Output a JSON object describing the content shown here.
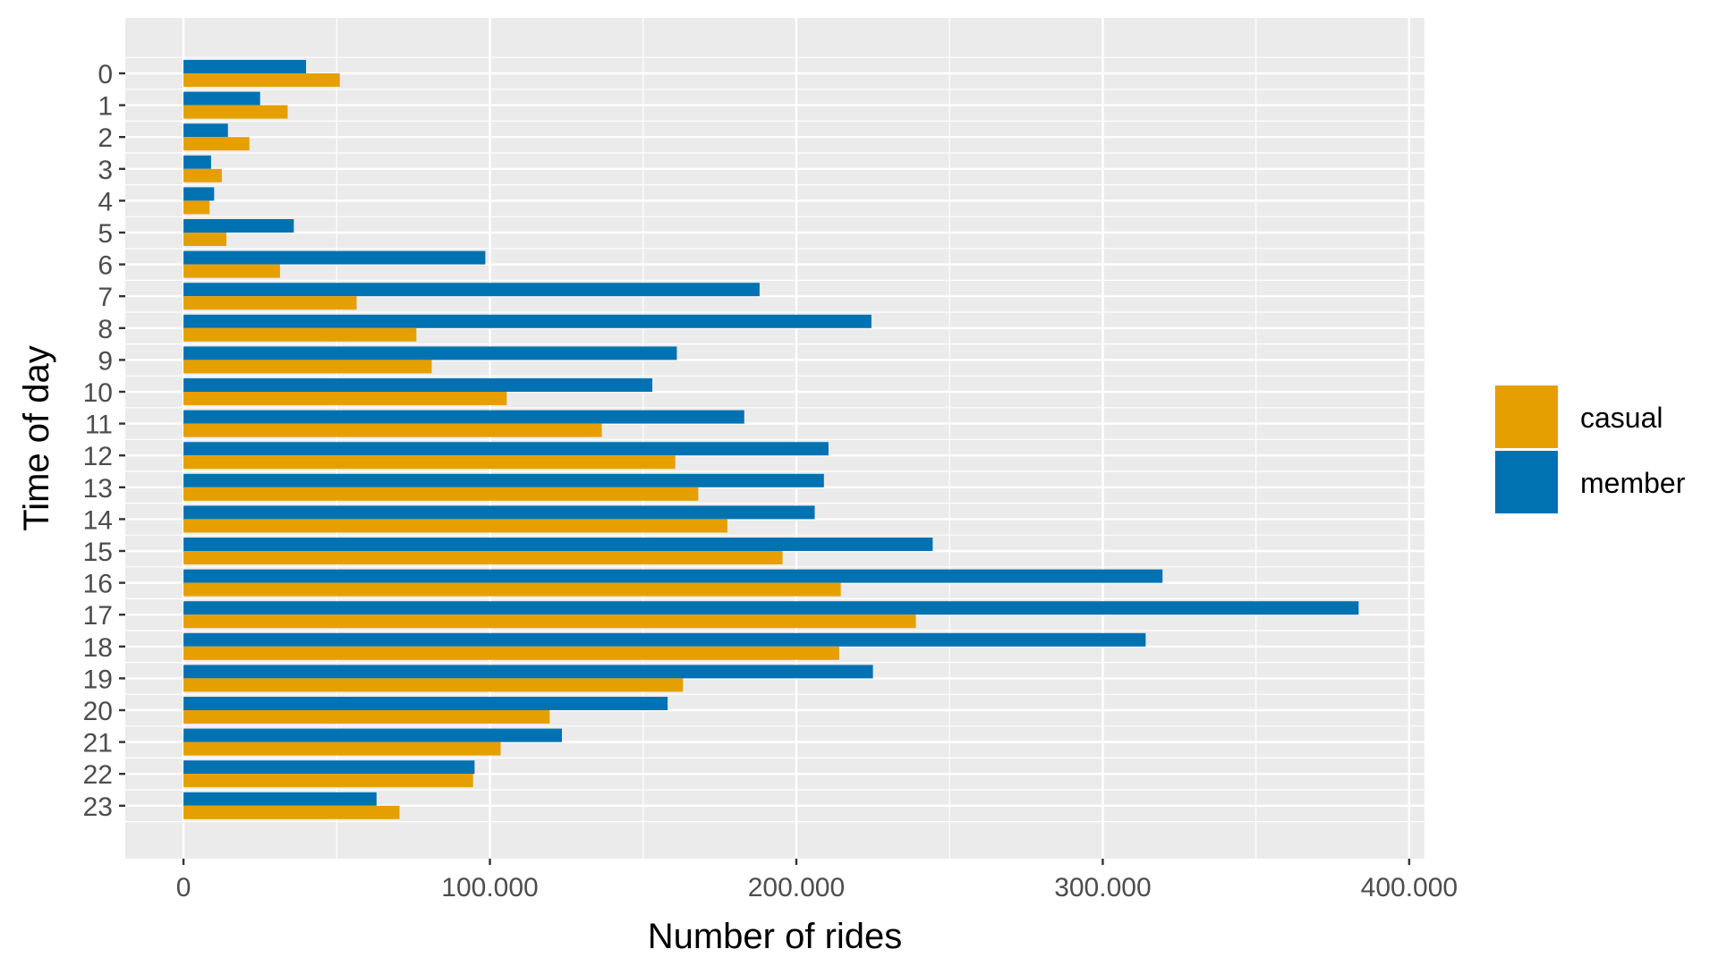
{
  "chart_data": {
    "type": "bar",
    "orientation": "horizontal",
    "xlabel": "Number of rides",
    "ylabel": "Time of day",
    "xlim": [
      -19000,
      405000
    ],
    "x_ticks": [
      0,
      100000,
      200000,
      300000,
      400000
    ],
    "x_tick_labels": [
      "0",
      "100.000",
      "200.000",
      "300.000",
      "400.000"
    ],
    "categories": [
      "0",
      "1",
      "2",
      "3",
      "4",
      "5",
      "6",
      "7",
      "8",
      "9",
      "10",
      "11",
      "12",
      "13",
      "14",
      "15",
      "16",
      "17",
      "18",
      "19",
      "20",
      "21",
      "22",
      "23"
    ],
    "series": [
      {
        "name": "casual",
        "color": "#E69F00",
        "values": [
          51000,
          34000,
          21500,
          12500,
          8500,
          14000,
          31500,
          56500,
          76000,
          81000,
          105500,
          136500,
          160500,
          168000,
          177500,
          195500,
          214500,
          239000,
          214000,
          163000,
          119500,
          103500,
          94500,
          70500
        ]
      },
      {
        "name": "member",
        "color": "#0072B2",
        "values": [
          40000,
          25000,
          14500,
          9000,
          10000,
          36000,
          98500,
          188000,
          224500,
          161000,
          153000,
          183000,
          210500,
          209000,
          206000,
          244500,
          319500,
          383500,
          314000,
          225000,
          158000,
          123500,
          95000,
          63000
        ]
      }
    ],
    "grid": true,
    "legend_position": "right"
  },
  "legend": {
    "items": [
      {
        "label": "casual",
        "color": "#E69F00"
      },
      {
        "label": "member",
        "color": "#0072B2"
      }
    ]
  },
  "colors": {
    "panel_background": "#EBEBEB",
    "grid_major": "#FFFFFF",
    "tick_text": "#4D4D4D"
  }
}
